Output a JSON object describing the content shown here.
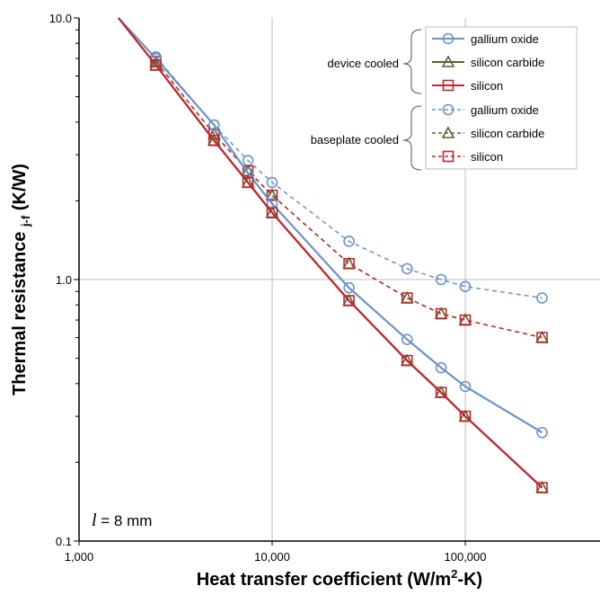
{
  "chart_data": {
    "type": "line",
    "xscale": "log",
    "yscale": "log",
    "xlim": [
      1000,
      500000
    ],
    "ylim": [
      0.1,
      10
    ],
    "grid": true,
    "xlabel_prefix": "Heat transfer coefficient (W/m",
    "xlabel_sup": "2",
    "xlabel_suffix": "-K)",
    "ylabel_prefix": "Thermal resistance ",
    "ylabel_sub": "j-f",
    "ylabel_suffix": " (K/W)",
    "x_ticks": [
      "1,000",
      "10,000",
      "100,000"
    ],
    "y_ticks": [
      "10.0",
      "1.0",
      "0.1"
    ],
    "annotation": {
      "var": "l",
      "text": " = 8 mm"
    },
    "legend_groups": [
      "device cooled",
      "baseplate cooled"
    ],
    "series": [
      {
        "name": "gallium oxide",
        "group": "device cooled",
        "style": "solid",
        "marker": "circle",
        "color": "#6b93c9",
        "x": [
          1600,
          2500,
          5000,
          7500,
          10000,
          25000,
          50000,
          75000,
          100000,
          250000
        ],
        "y": [
          10.0,
          7.0,
          3.9,
          2.55,
          1.95,
          0.93,
          0.59,
          0.46,
          0.39,
          0.26
        ]
      },
      {
        "name": "silicon carbide",
        "group": "device cooled",
        "style": "solid",
        "marker": "triangle",
        "color": "#4e6a2a",
        "x": [
          1600,
          2500,
          5000,
          7500,
          10000,
          25000,
          50000,
          75000,
          100000,
          250000
        ],
        "y": [
          10.0,
          6.6,
          3.4,
          2.35,
          1.8,
          0.83,
          0.49,
          0.37,
          0.3,
          0.16
        ]
      },
      {
        "name": "silicon",
        "group": "device cooled",
        "style": "solid",
        "marker": "square",
        "color": "#c0282f",
        "x": [
          1600,
          2500,
          5000,
          7500,
          10000,
          25000,
          50000,
          75000,
          100000,
          250000
        ],
        "y": [
          10.0,
          6.6,
          3.4,
          2.35,
          1.8,
          0.83,
          0.49,
          0.37,
          0.3,
          0.16
        ]
      },
      {
        "name": "gallium oxide",
        "group": "baseplate cooled",
        "style": "dashed",
        "marker": "circle",
        "color": "#6b93c9",
        "x": [
          2500,
          5000,
          7500,
          10000,
          25000,
          50000,
          75000,
          100000,
          250000
        ],
        "y": [
          7.1,
          3.9,
          2.85,
          2.35,
          1.4,
          1.1,
          1.0,
          0.94,
          0.85
        ]
      },
      {
        "name": "silicon carbide",
        "group": "baseplate cooled",
        "style": "dashed",
        "marker": "triangle",
        "color": "#4e6a2a",
        "x": [
          2500,
          5000,
          7500,
          10000,
          25000,
          50000,
          75000,
          100000,
          250000
        ],
        "y": [
          6.8,
          3.6,
          2.6,
          2.1,
          1.15,
          0.85,
          0.74,
          0.7,
          0.6
        ]
      },
      {
        "name": "silicon",
        "group": "baseplate cooled",
        "style": "dashed",
        "marker": "square",
        "color": "#c0282f",
        "x": [
          2500,
          5000,
          7500,
          10000,
          25000,
          50000,
          75000,
          100000,
          250000
        ],
        "y": [
          6.8,
          3.6,
          2.6,
          2.1,
          1.15,
          0.85,
          0.74,
          0.7,
          0.6
        ]
      }
    ]
  }
}
